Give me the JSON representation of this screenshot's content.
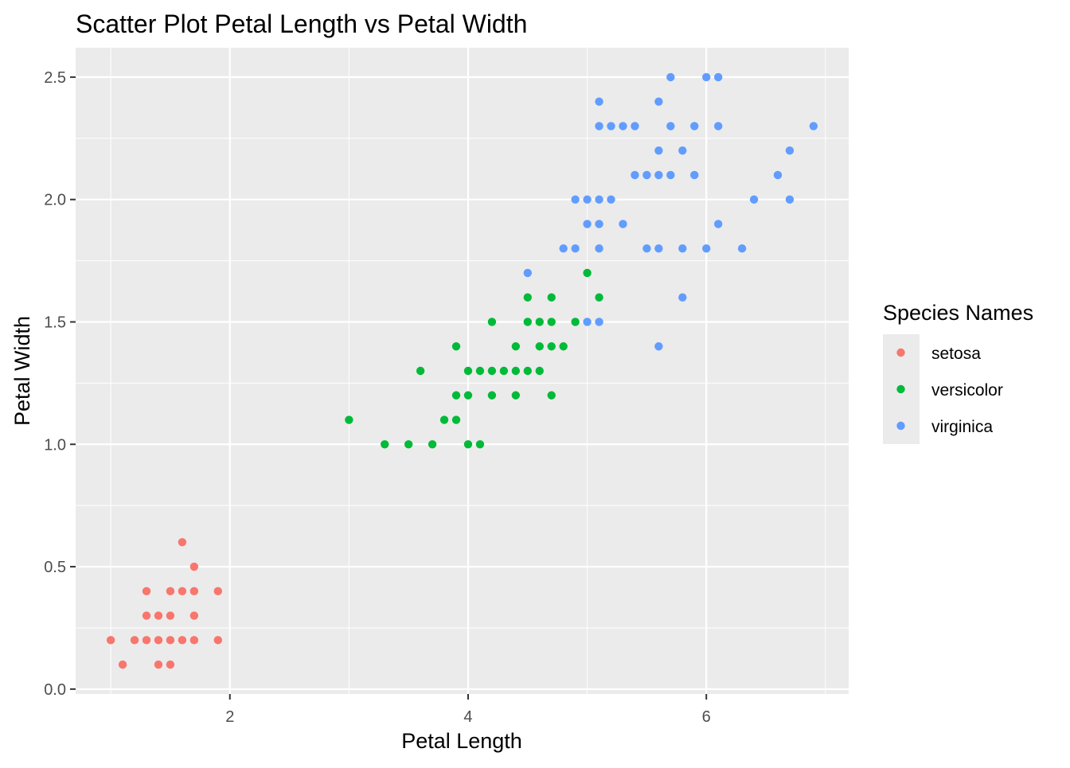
{
  "chart_data": {
    "type": "scatter",
    "title": "Scatter Plot Petal Length vs Petal Width",
    "xlabel": "Petal Length",
    "ylabel": "Petal Width",
    "xlim": [
      0.705,
      7.195
    ],
    "ylim": [
      -0.02,
      2.62
    ],
    "x_ticks": [
      2,
      4,
      6
    ],
    "x_tick_labels": [
      "2",
      "4",
      "6"
    ],
    "y_ticks": [
      0.0,
      0.5,
      1.0,
      1.5,
      2.0,
      2.5
    ],
    "y_tick_labels": [
      "0.0",
      "0.5",
      "1.0",
      "1.5",
      "2.0",
      "2.5"
    ],
    "grid": true,
    "legend": {
      "title": "Species Names",
      "position": "right"
    },
    "colors": {
      "panel_background": "#EBEBEB",
      "grid_major": "#FFFFFF",
      "setosa": "#F8766D",
      "versicolor": "#00BA38",
      "virginica": "#619CFF"
    },
    "series": [
      {
        "name": "setosa",
        "color": "#F8766D",
        "points": [
          [
            1.0,
            0.2
          ],
          [
            1.1,
            0.1
          ],
          [
            1.2,
            0.2
          ],
          [
            1.3,
            0.2
          ],
          [
            1.3,
            0.3
          ],
          [
            1.3,
            0.4
          ],
          [
            1.4,
            0.1
          ],
          [
            1.4,
            0.2
          ],
          [
            1.4,
            0.3
          ],
          [
            1.5,
            0.1
          ],
          [
            1.5,
            0.2
          ],
          [
            1.5,
            0.3
          ],
          [
            1.5,
            0.4
          ],
          [
            1.6,
            0.2
          ],
          [
            1.6,
            0.4
          ],
          [
            1.6,
            0.6
          ],
          [
            1.7,
            0.2
          ],
          [
            1.7,
            0.3
          ],
          [
            1.7,
            0.4
          ],
          [
            1.7,
            0.5
          ],
          [
            1.9,
            0.2
          ],
          [
            1.9,
            0.4
          ]
        ]
      },
      {
        "name": "versicolor",
        "color": "#00BA38",
        "points": [
          [
            3.0,
            1.1
          ],
          [
            3.3,
            1.0
          ],
          [
            3.5,
            1.0
          ],
          [
            3.6,
            1.3
          ],
          [
            3.7,
            1.0
          ],
          [
            3.8,
            1.1
          ],
          [
            3.9,
            1.1
          ],
          [
            3.9,
            1.2
          ],
          [
            3.9,
            1.4
          ],
          [
            4.0,
            1.0
          ],
          [
            4.0,
            1.2
          ],
          [
            4.0,
            1.3
          ],
          [
            4.1,
            1.0
          ],
          [
            4.1,
            1.3
          ],
          [
            4.2,
            1.2
          ],
          [
            4.2,
            1.3
          ],
          [
            4.2,
            1.5
          ],
          [
            4.3,
            1.3
          ],
          [
            4.4,
            1.2
          ],
          [
            4.4,
            1.3
          ],
          [
            4.4,
            1.4
          ],
          [
            4.5,
            1.3
          ],
          [
            4.5,
            1.5
          ],
          [
            4.5,
            1.6
          ],
          [
            4.6,
            1.3
          ],
          [
            4.6,
            1.4
          ],
          [
            4.6,
            1.5
          ],
          [
            4.7,
            1.2
          ],
          [
            4.7,
            1.4
          ],
          [
            4.7,
            1.5
          ],
          [
            4.7,
            1.6
          ],
          [
            4.8,
            1.4
          ],
          [
            4.9,
            1.5
          ],
          [
            5.0,
            1.7
          ],
          [
            5.1,
            1.6
          ]
        ]
      },
      {
        "name": "virginica",
        "color": "#619CFF",
        "points": [
          [
            4.5,
            1.7
          ],
          [
            4.8,
            1.8
          ],
          [
            4.9,
            1.8
          ],
          [
            4.9,
            2.0
          ],
          [
            5.0,
            1.5
          ],
          [
            5.0,
            1.9
          ],
          [
            5.0,
            2.0
          ],
          [
            5.1,
            1.5
          ],
          [
            5.1,
            1.8
          ],
          [
            5.1,
            1.9
          ],
          [
            5.1,
            2.0
          ],
          [
            5.1,
            2.3
          ],
          [
            5.1,
            2.4
          ],
          [
            5.2,
            2.0
          ],
          [
            5.2,
            2.3
          ],
          [
            5.3,
            1.9
          ],
          [
            5.3,
            2.3
          ],
          [
            5.4,
            2.1
          ],
          [
            5.4,
            2.3
          ],
          [
            5.5,
            1.8
          ],
          [
            5.5,
            2.1
          ],
          [
            5.6,
            1.4
          ],
          [
            5.6,
            1.8
          ],
          [
            5.6,
            2.1
          ],
          [
            5.6,
            2.2
          ],
          [
            5.6,
            2.4
          ],
          [
            5.7,
            2.1
          ],
          [
            5.7,
            2.3
          ],
          [
            5.7,
            2.5
          ],
          [
            5.8,
            1.6
          ],
          [
            5.8,
            1.8
          ],
          [
            5.8,
            2.2
          ],
          [
            5.9,
            2.1
          ],
          [
            5.9,
            2.3
          ],
          [
            6.0,
            1.8
          ],
          [
            6.0,
            2.5
          ],
          [
            6.1,
            1.9
          ],
          [
            6.1,
            2.3
          ],
          [
            6.1,
            2.5
          ],
          [
            6.3,
            1.8
          ],
          [
            6.4,
            2.0
          ],
          [
            6.6,
            2.1
          ],
          [
            6.7,
            2.0
          ],
          [
            6.7,
            2.2
          ],
          [
            6.9,
            2.3
          ]
        ]
      }
    ]
  }
}
